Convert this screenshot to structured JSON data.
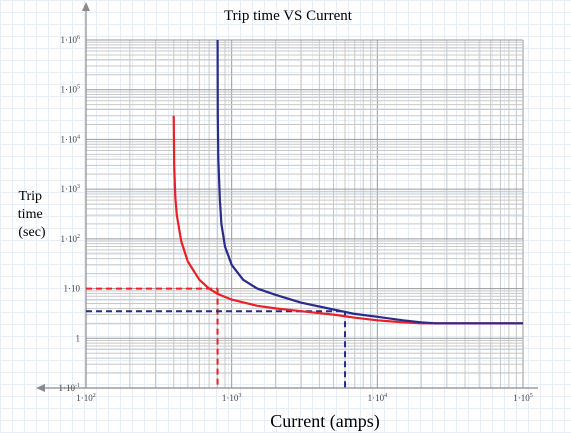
{
  "chart_data": {
    "type": "line",
    "title": "Trip time VS Current",
    "xlabel": "Current (amps)",
    "ylabel": [
      "Trip",
      "time",
      "(sec)"
    ],
    "x_scale": "log",
    "y_scale": "log",
    "xlim": [
      100,
      100000
    ],
    "ylim": [
      0.1,
      1000000
    ],
    "grid": true,
    "x_ticks": [
      {
        "base": "1·10",
        "exp": "2"
      },
      {
        "base": "1·10",
        "exp": "3"
      },
      {
        "base": "1·10",
        "exp": "4"
      },
      {
        "base": "1·10",
        "exp": "5"
      }
    ],
    "y_ticks": [
      {
        "base": "1·10",
        "exp": "-1"
      },
      {
        "base": "1",
        "exp": ""
      },
      {
        "base": "1·10",
        "exp": ""
      },
      {
        "base": "1·10",
        "exp": "2"
      },
      {
        "base": "1·10",
        "exp": "3"
      },
      {
        "base": "1·10",
        "exp": "4"
      },
      {
        "base": "1·10",
        "exp": "5"
      },
      {
        "base": "1·10",
        "exp": "6"
      }
    ],
    "series": [
      {
        "color": "#e8202a",
        "x": [
          400,
          403,
          410,
          420,
          450,
          500,
          600,
          700,
          800,
          1000,
          1500,
          2000,
          3000,
          5000,
          7000,
          10000,
          15000,
          20000,
          30000,
          50000,
          100000
        ],
        "y": [
          30000,
          3000,
          700,
          300,
          90,
          35,
          15,
          10,
          7.8,
          6.0,
          4.5,
          4.0,
          3.5,
          3.0,
          2.6,
          2.3,
          2.1,
          2.0,
          2.0,
          2.0,
          2.0
        ]
      },
      {
        "color": "#2a2a8c",
        "x": [
          800,
          803,
          810,
          830,
          850,
          900,
          1000,
          1200,
          1500,
          2000,
          3000,
          5000,
          7000,
          10000,
          15000,
          20000,
          25000,
          30000,
          50000,
          100000
        ],
        "y": [
          1000000,
          30000,
          4000,
          600,
          200,
          70,
          30,
          15,
          10,
          7.5,
          5.2,
          3.8,
          3.1,
          2.7,
          2.3,
          2.1,
          2.0,
          2.0,
          2.0,
          2.0
        ]
      }
    ],
    "reference_lines": [
      {
        "color": "#e8202a",
        "x": 800,
        "y": 10
      },
      {
        "color": "#2a2a8c",
        "x": 6000,
        "y": 3.5
      }
    ]
  }
}
